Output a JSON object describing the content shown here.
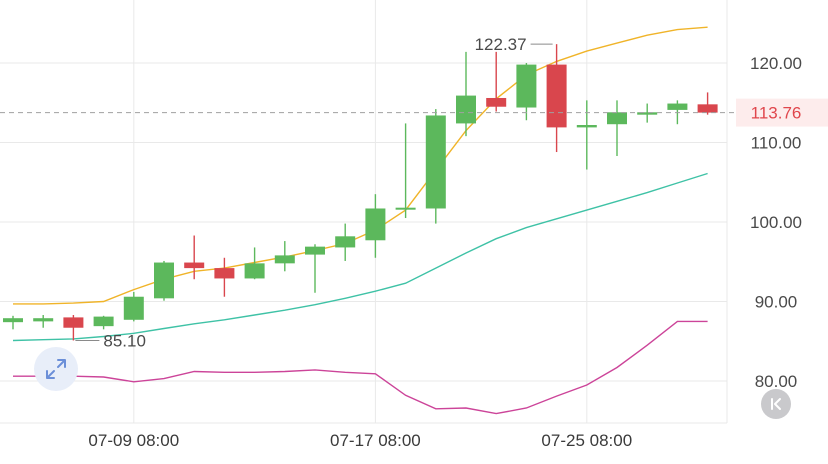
{
  "chart_data": {
    "type": "candlestick",
    "y_axis": {
      "ticks": [
        "120.00",
        "110.00",
        "100.00",
        "90.00",
        "80.00"
      ],
      "tick_values": [
        120,
        110,
        100,
        90,
        80
      ]
    },
    "x_axis": {
      "ticks": [
        "07-09 08:00",
        "07-17 08:00",
        "07-25 08:00"
      ],
      "tick_candle_index": [
        4,
        12,
        19
      ]
    },
    "last_price": {
      "value": 113.76,
      "label": "113.76"
    },
    "annotations": {
      "high_label": "122.37",
      "high_value": 122.37,
      "low_label": "85.10",
      "low_value": 85.1
    },
    "candles": [
      {
        "o": 87.4,
        "h": 88.2,
        "l": 86.5,
        "c": 87.9
      },
      {
        "o": 87.5,
        "h": 88.3,
        "l": 86.7,
        "c": 87.9
      },
      {
        "o": 88.0,
        "h": 88.3,
        "l": 85.1,
        "c": 86.7
      },
      {
        "o": 86.9,
        "h": 88.2,
        "l": 86.5,
        "c": 88.1
      },
      {
        "o": 87.7,
        "h": 91.2,
        "l": 87.5,
        "c": 90.6
      },
      {
        "o": 90.4,
        "h": 95.1,
        "l": 90.1,
        "c": 94.9
      },
      {
        "o": 94.9,
        "h": 98.3,
        "l": 92.8,
        "c": 94.2
      },
      {
        "o": 94.2,
        "h": 95.5,
        "l": 90.6,
        "c": 92.9
      },
      {
        "o": 92.9,
        "h": 96.8,
        "l": 92.8,
        "c": 94.8
      },
      {
        "o": 94.8,
        "h": 97.6,
        "l": 93.8,
        "c": 95.8
      },
      {
        "o": 95.9,
        "h": 97.2,
        "l": 91.1,
        "c": 96.9
      },
      {
        "o": 96.8,
        "h": 99.8,
        "l": 95.1,
        "c": 98.2
      },
      {
        "o": 97.7,
        "h": 103.5,
        "l": 95.5,
        "c": 101.7
      },
      {
        "o": 101.7,
        "h": 112.4,
        "l": 100.5,
        "c": 101.8
      },
      {
        "o": 101.7,
        "h": 114.2,
        "l": 99.8,
        "c": 113.4
      },
      {
        "o": 112.4,
        "h": 121.4,
        "l": 110.8,
        "c": 115.9
      },
      {
        "o": 115.6,
        "h": 121.4,
        "l": 113.9,
        "c": 114.5
      },
      {
        "o": 114.4,
        "h": 120.0,
        "l": 112.8,
        "c": 119.8
      },
      {
        "o": 119.8,
        "h": 122.37,
        "l": 108.8,
        "c": 111.9
      },
      {
        "o": 111.9,
        "h": 115.3,
        "l": 106.6,
        "c": 112.2
      },
      {
        "o": 112.3,
        "h": 115.3,
        "l": 108.3,
        "c": 113.8
      },
      {
        "o": 113.5,
        "h": 114.9,
        "l": 112.5,
        "c": 113.8
      },
      {
        "o": 114.1,
        "h": 115.3,
        "l": 112.3,
        "c": 114.9
      },
      {
        "o": 114.8,
        "h": 116.3,
        "l": 113.5,
        "c": 113.76
      }
    ],
    "lines": [
      {
        "name": "",
        "color": "#f0b429",
        "values": [
          89.7,
          89.7,
          89.8,
          90.0,
          91.5,
          92.8,
          93.8,
          94.2,
          94.9,
          95.6,
          96.4,
          97.3,
          99.0,
          101.5,
          106.5,
          111.5,
          115.5,
          118.5,
          120.2,
          121.5,
          122.5,
          123.5,
          124.2,
          124.5
        ]
      },
      {
        "name": "",
        "color": "#3fc2a6",
        "values": [
          85.1,
          85.2,
          85.3,
          85.6,
          86.0,
          86.6,
          87.2,
          87.7,
          88.3,
          88.9,
          89.6,
          90.4,
          91.3,
          92.3,
          94.2,
          96.1,
          97.9,
          99.3,
          100.4,
          101.5,
          102.6,
          103.7,
          104.9,
          106.1
        ]
      },
      {
        "name": "",
        "color": "#cc4499",
        "values": [
          80.6,
          80.6,
          80.6,
          80.5,
          79.9,
          80.3,
          81.2,
          81.1,
          81.1,
          81.2,
          81.4,
          81.1,
          80.9,
          78.2,
          76.5,
          76.6,
          75.9,
          76.6,
          78.1,
          79.5,
          81.7,
          84.5,
          87.5,
          87.5
        ]
      }
    ],
    "colors": {
      "up": "#5cb85c",
      "down": "#d9464d",
      "grid": "#e9e9e9",
      "dashed": "#a0a0a0",
      "price_bg": "#fdecec"
    },
    "grid": true
  },
  "controls": {
    "expand_icon": "expand-arrows-icon",
    "back_icon": "back-to-latest-icon"
  }
}
